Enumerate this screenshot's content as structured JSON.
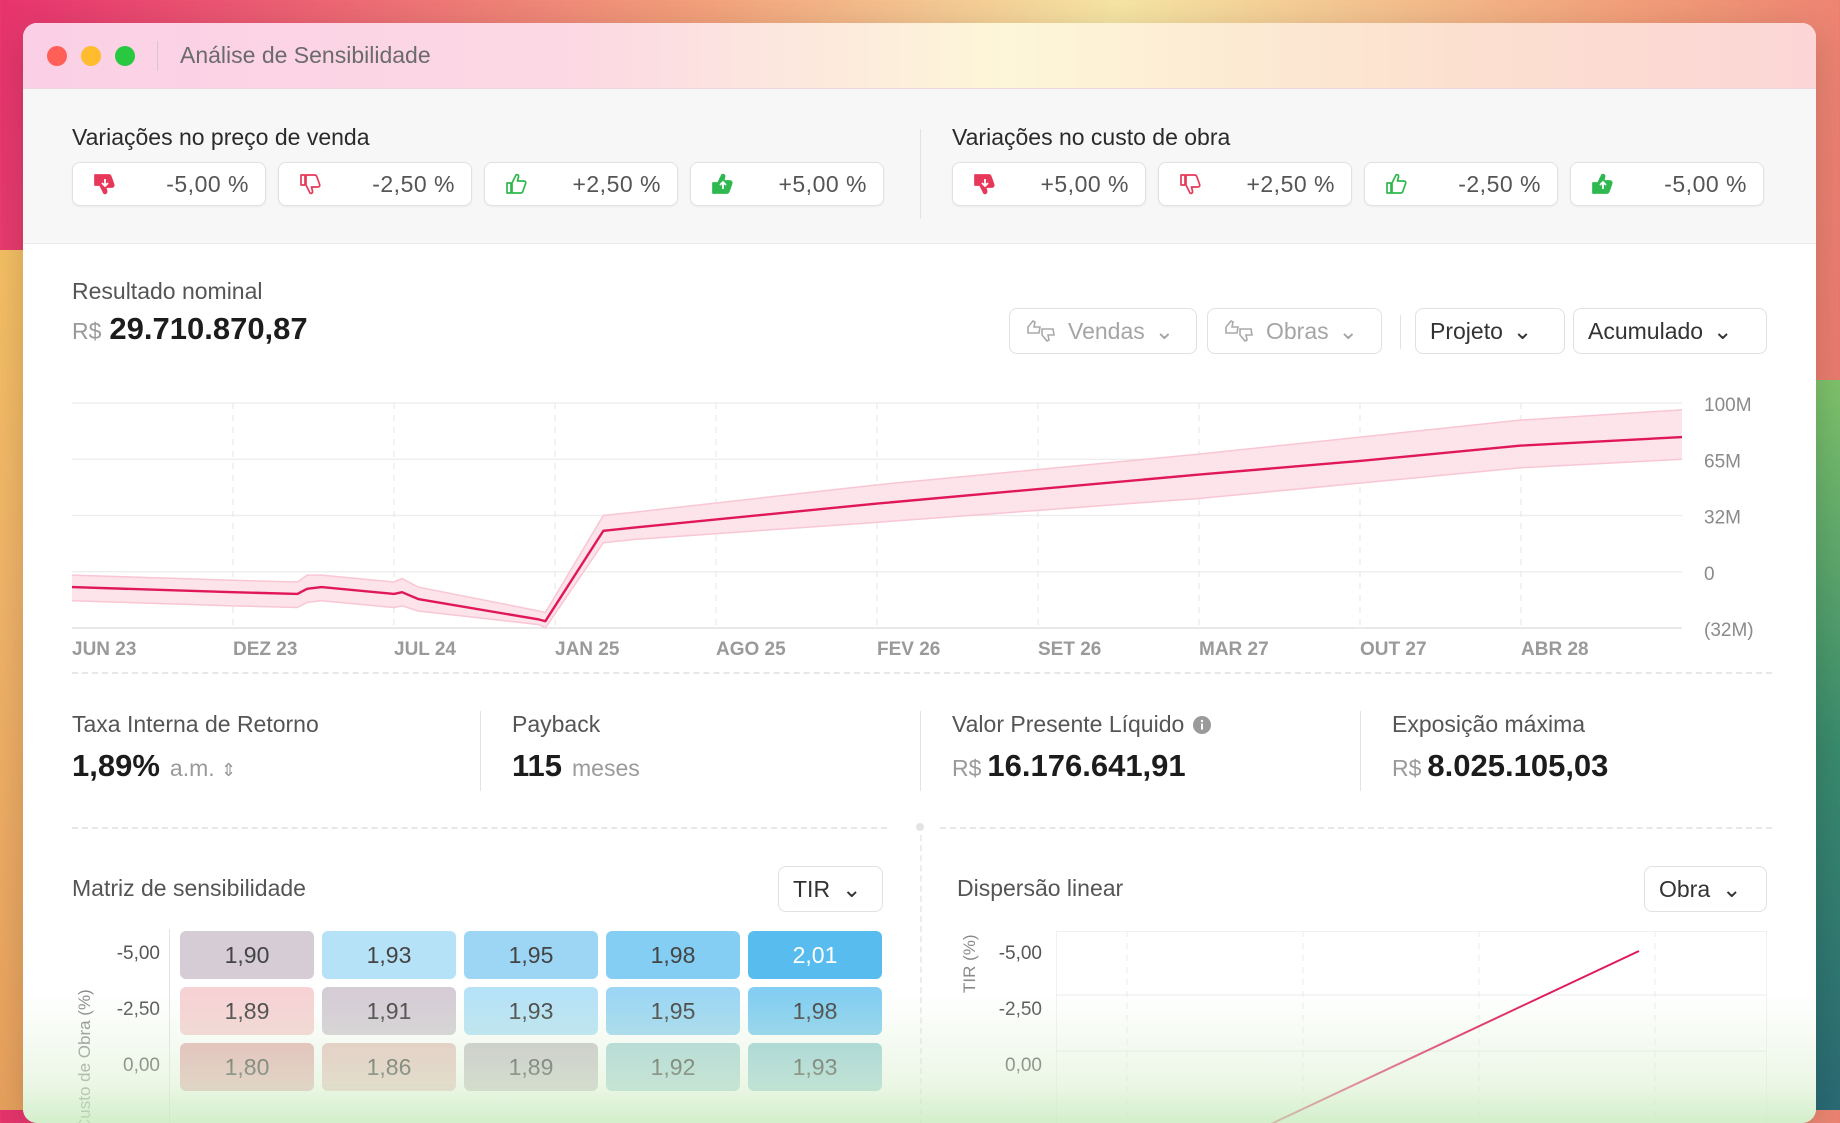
{
  "window": {
    "title": "Análise de Sensibilidade"
  },
  "variations": {
    "price": {
      "title": "Variações no preço de venda",
      "buttons": [
        {
          "icon": "thumbs-down-strong-icon",
          "value": "-5,00 %",
          "color": "#e8385a"
        },
        {
          "icon": "thumbs-down-icon",
          "value": "-2,50 %",
          "color": "#e8385a"
        },
        {
          "icon": "thumbs-up-icon",
          "value": "+2,50 %",
          "color": "#2fb84f"
        },
        {
          "icon": "thumbs-up-strong-icon",
          "value": "+5,00 %",
          "color": "#2fb84f"
        }
      ]
    },
    "cost": {
      "title": "Variações no custo de obra",
      "buttons": [
        {
          "icon": "thumbs-down-strong-icon",
          "value": "+5,00 %",
          "color": "#e8385a"
        },
        {
          "icon": "thumbs-down-icon",
          "value": "+2,50 %",
          "color": "#e8385a"
        },
        {
          "icon": "thumbs-up-icon",
          "value": "-2,50 %",
          "color": "#2fb84f"
        },
        {
          "icon": "thumbs-up-strong-icon",
          "value": "-5,00 %",
          "color": "#2fb84f"
        }
      ]
    }
  },
  "result": {
    "label": "Resultado nominal",
    "currency": "R$",
    "value": "29.710.870,87"
  },
  "filters": {
    "sales": "Vendas",
    "works": "Obras",
    "scope": "Projeto",
    "mode": "Acumulado"
  },
  "chart_data": {
    "type": "line",
    "x_ticks": [
      "JUN 23",
      "DEZ 23",
      "JUL 24",
      "JAN 25",
      "AGO 25",
      "FEV 26",
      "SET 26",
      "MAR 27",
      "OUT 27",
      "ABR 28"
    ],
    "y_ticks": [
      "100M",
      "65M",
      "32M",
      "0",
      "(32M)"
    ],
    "ylim": [
      -32,
      100
    ],
    "series": [
      {
        "color": "#e0185a",
        "points": [
          [
            0,
            -8
          ],
          [
            1,
            -11
          ],
          [
            1.4,
            -12
          ],
          [
            1.46,
            -9
          ],
          [
            1.55,
            -8
          ],
          [
            2,
            -12
          ],
          [
            2.05,
            -11
          ],
          [
            2.15,
            -15
          ],
          [
            2.9,
            -27
          ],
          [
            2.94,
            -28
          ],
          [
            3.3,
            25
          ],
          [
            3.5,
            27
          ],
          [
            5,
            41
          ],
          [
            7,
            58
          ],
          [
            8,
            66
          ],
          [
            9,
            75
          ],
          [
            10,
            80
          ]
        ]
      }
    ],
    "band": {
      "color": "#f9c6d4",
      "upper": [
        [
          0,
          -1
        ],
        [
          1,
          -4
        ],
        [
          1.4,
          -5
        ],
        [
          1.46,
          -1
        ],
        [
          1.55,
          -1
        ],
        [
          2,
          -5
        ],
        [
          2.05,
          -3
        ],
        [
          2.15,
          -8
        ],
        [
          2.9,
          -22
        ],
        [
          2.94,
          -23
        ],
        [
          3.3,
          34
        ],
        [
          3.5,
          36
        ],
        [
          5,
          52
        ],
        [
          7,
          70
        ],
        [
          8,
          80
        ],
        [
          9,
          90
        ],
        [
          10,
          96
        ]
      ],
      "lower": [
        [
          0,
          -16
        ],
        [
          1,
          -19
        ],
        [
          1.4,
          -20
        ],
        [
          1.46,
          -17
        ],
        [
          1.55,
          -16
        ],
        [
          2,
          -20
        ],
        [
          2.05,
          -19
        ],
        [
          2.15,
          -22
        ],
        [
          2.9,
          -30
        ],
        [
          2.94,
          -32
        ],
        [
          3.3,
          18
        ],
        [
          3.5,
          20
        ],
        [
          5,
          30
        ],
        [
          7,
          44
        ],
        [
          8,
          53
        ],
        [
          9,
          62
        ],
        [
          10,
          67
        ]
      ]
    }
  },
  "kpis": {
    "irr": {
      "label": "Taxa Interna de Retorno",
      "value": "1,89%",
      "unit": "a.m."
    },
    "payback": {
      "label": "Payback",
      "value": "115",
      "unit": "meses"
    },
    "npv": {
      "label": "Valor Presente Líquido",
      "currency": "R$",
      "value": "16.176.641,91"
    },
    "exposure": {
      "label": "Exposição máxima",
      "currency": "R$",
      "value": "8.025.105,03"
    }
  },
  "matrix": {
    "title": "Matriz de sensibilidade",
    "selector": "TIR",
    "axis_label": "Custo de Obra (%)",
    "row_labels": [
      "-5,00",
      "-2,50",
      "0,00"
    ],
    "rows": [
      [
        {
          "v": "1,90",
          "c": "#d5ccd6"
        },
        {
          "v": "1,93",
          "c": "#b6e2f7"
        },
        {
          "v": "1,95",
          "c": "#9cd6f4"
        },
        {
          "v": "1,98",
          "c": "#83cef2"
        },
        {
          "v": "2,01",
          "c": "#58bdee"
        }
      ],
      [
        {
          "v": "1,89",
          "c": "#f7d2d5"
        },
        {
          "v": "1,91",
          "c": "#d5ccd6"
        },
        {
          "v": "1,93",
          "c": "#b6e2f7"
        },
        {
          "v": "1,95",
          "c": "#9cd6f4"
        },
        {
          "v": "1,98",
          "c": "#83cef2"
        }
      ],
      [
        {
          "v": "1,80",
          "c": "#e6b2b5"
        },
        {
          "v": "1,86",
          "c": "#e8c4c2"
        },
        {
          "v": "1,89",
          "c": "#c9c3c8"
        },
        {
          "v": "1,92",
          "c": "#a9d4d8"
        },
        {
          "v": "1,93",
          "c": "#9cd0d8"
        }
      ]
    ]
  },
  "dispersion": {
    "title": "Dispersão linear",
    "selector": "Obra",
    "axis_label": "TIR (%)",
    "row_labels": [
      "-5,00",
      "-2,50",
      "0,00"
    ]
  }
}
